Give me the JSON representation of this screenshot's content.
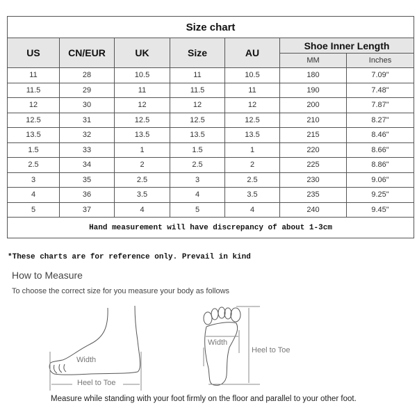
{
  "chart": {
    "title": "Size chart",
    "headers": [
      "US",
      "CN/EUR",
      "UK",
      "Size",
      "AU"
    ],
    "group_header": "Shoe Inner Length",
    "sub_headers": [
      "MM",
      "Inches"
    ],
    "rows": [
      [
        "11",
        "28",
        "10.5",
        "11",
        "10.5",
        "180",
        "7.09\""
      ],
      [
        "11.5",
        "29",
        "11",
        "11.5",
        "11",
        "190",
        "7.48\""
      ],
      [
        "12",
        "30",
        "12",
        "12",
        "12",
        "200",
        "7.87\""
      ],
      [
        "12.5",
        "31",
        "12.5",
        "12.5",
        "12.5",
        "210",
        "8.27\""
      ],
      [
        "13.5",
        "32",
        "13.5",
        "13.5",
        "13.5",
        "215",
        "8.46\""
      ],
      [
        "1.5",
        "33",
        "1",
        "1.5",
        "1",
        "220",
        "8.66\""
      ],
      [
        "2.5",
        "34",
        "2",
        "2.5",
        "2",
        "225",
        "8.86\""
      ],
      [
        "3",
        "35",
        "2.5",
        "3",
        "2.5",
        "230",
        "9.06\""
      ],
      [
        "4",
        "36",
        "3.5",
        "4",
        "3.5",
        "235",
        "9.25\""
      ],
      [
        "5",
        "37",
        "4",
        "5",
        "4",
        "240",
        "9.45\""
      ]
    ],
    "note": "Hand measurement will have discrepancy of about 1-3cm"
  },
  "reference_note": "*These charts are for reference only. Prevail in kind",
  "how_to": {
    "title": "How to Measure",
    "subtitle": "To choose the correct size for you measure your body as follows",
    "side_labels": {
      "width": "Width",
      "length": "Heel to Toe"
    },
    "top_labels": {
      "width": "Width",
      "length": "Heel to Toe"
    },
    "instruction": "Measure while standing with your foot firmly on the floor and parallel to your other foot."
  }
}
